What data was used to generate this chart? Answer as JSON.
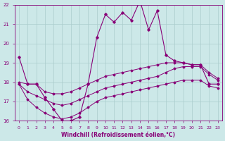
{
  "xlabel": "Windchill (Refroidissement éolien,°C)",
  "xlim": [
    -0.5,
    23.5
  ],
  "ylim": [
    16,
    22
  ],
  "xticks": [
    0,
    1,
    2,
    3,
    4,
    5,
    6,
    7,
    8,
    9,
    10,
    11,
    12,
    13,
    14,
    15,
    16,
    17,
    18,
    19,
    20,
    21,
    22,
    23
  ],
  "yticks": [
    16,
    17,
    18,
    19,
    20,
    21,
    22
  ],
  "bg_color": "#cce8e8",
  "line_color": "#880077",
  "grid_color": "#aacccc",
  "line_dramatic": [
    19.3,
    17.9,
    null,
    null,
    null,
    null,
    null,
    null,
    null,
    20.3,
    21.5,
    21.1,
    21.6,
    21.2,
    22.2,
    20.7,
    21.7,
    19.4,
    19.1,
    null,
    null,
    null,
    null,
    null
  ],
  "line_wavy": [
    19.3,
    17.9,
    17.9,
    17.2,
    16.6,
    16.0,
    16.0,
    16.2,
    17.9,
    20.3,
    21.5,
    21.1,
    21.6,
    21.2,
    22.2,
    20.7,
    21.7,
    19.4,
    19.1,
    19.0,
    18.9,
    18.9,
    17.9,
    17.9
  ],
  "line_slow_top": [
    18.0,
    17.9,
    17.9,
    17.5,
    17.4,
    17.4,
    17.5,
    17.7,
    17.9,
    18.1,
    18.3,
    18.4,
    18.5,
    18.6,
    18.7,
    18.8,
    18.9,
    19.0,
    19.0,
    19.0,
    18.9,
    18.9,
    18.5,
    18.2
  ],
  "line_slow_mid": [
    17.9,
    17.5,
    17.3,
    17.1,
    16.9,
    16.8,
    16.9,
    17.1,
    17.3,
    17.5,
    17.7,
    17.8,
    17.9,
    18.0,
    18.1,
    18.2,
    18.3,
    18.5,
    18.7,
    18.8,
    18.8,
    18.8,
    18.4,
    18.1
  ],
  "line_slow_bot": [
    17.9,
    17.1,
    16.7,
    16.4,
    16.2,
    16.1,
    16.2,
    16.4,
    16.7,
    17.0,
    17.2,
    17.3,
    17.4,
    17.5,
    17.6,
    17.7,
    17.8,
    17.9,
    18.0,
    18.1,
    18.1,
    18.1,
    17.8,
    17.7
  ]
}
